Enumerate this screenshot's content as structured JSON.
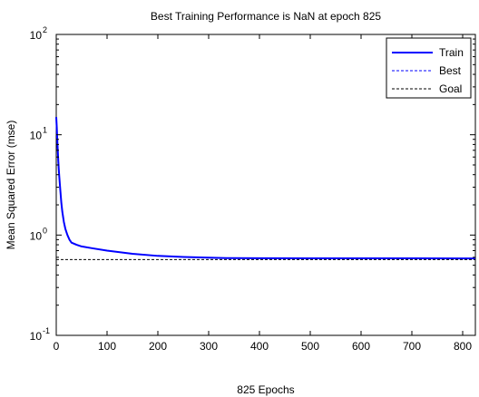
{
  "chart_data": {
    "type": "line",
    "title": "Best Training Performance is NaN at epoch 825",
    "xlabel": "825 Epochs",
    "ylabel": "Mean Squared Error  (mse)",
    "xlim": [
      0,
      825
    ],
    "ylim": [
      0.1,
      100
    ],
    "yscale": "log",
    "xticks": [
      0,
      100,
      200,
      300,
      400,
      500,
      600,
      700,
      800
    ],
    "yticks": [
      {
        "value": 0.1,
        "base": "10",
        "exp": "-1"
      },
      {
        "value": 1,
        "base": "10",
        "exp": "0"
      },
      {
        "value": 10,
        "base": "10",
        "exp": "1"
      },
      {
        "value": 100,
        "base": "10",
        "exp": "2"
      }
    ],
    "grid": false,
    "legend_position": "top-right",
    "series": [
      {
        "name": "Train",
        "color": "#0000ff",
        "style": "solid",
        "x": [
          0,
          1,
          2,
          3,
          4,
          5,
          6,
          8,
          10,
          12,
          15,
          18,
          22,
          26,
          30,
          40,
          50,
          70,
          100,
          150,
          200,
          250,
          300,
          335,
          400,
          500,
          600,
          700,
          800,
          825
        ],
        "y": [
          15,
          12,
          9,
          7,
          5.5,
          4.5,
          3.8,
          2.8,
          2.1,
          1.7,
          1.35,
          1.15,
          1.0,
          0.9,
          0.84,
          0.8,
          0.77,
          0.74,
          0.7,
          0.65,
          0.62,
          0.605,
          0.595,
          0.59,
          0.588,
          0.587,
          0.586,
          0.586,
          0.585,
          0.585
        ]
      },
      {
        "name": "Best",
        "color": "#0000ff",
        "style": "dashed",
        "x": [],
        "y": []
      },
      {
        "name": "Goal",
        "color": "#000000",
        "style": "dashed",
        "x": [
          0,
          825
        ],
        "y": [
          0.57,
          0.57
        ]
      }
    ]
  }
}
